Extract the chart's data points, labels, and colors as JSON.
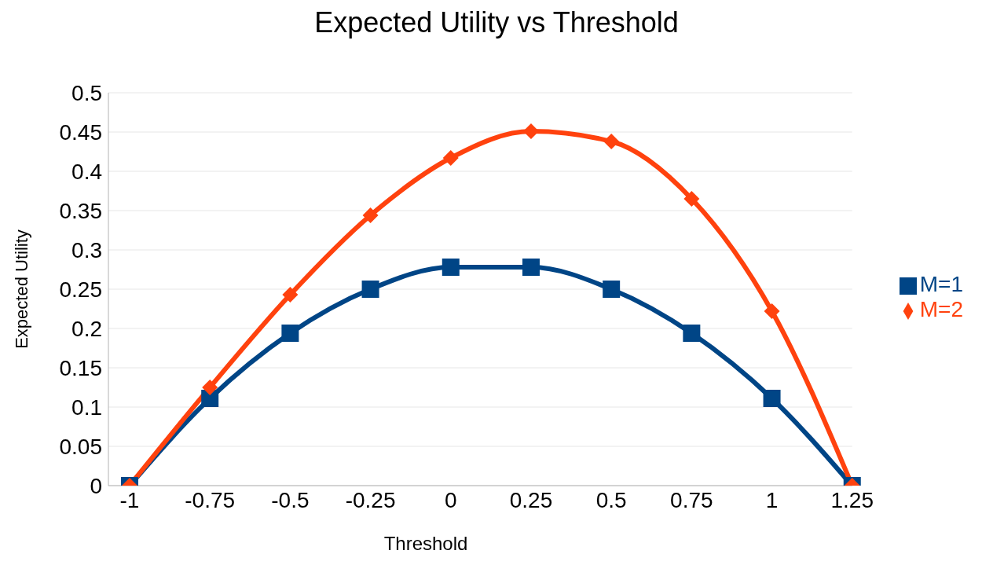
{
  "chart_data": {
    "type": "line",
    "title": "Expected Utility vs Threshold",
    "xlabel": "Threshold",
    "ylabel": "Expected Utility",
    "categories": [
      "-1",
      "-0.75",
      "-0.5",
      "-0.25",
      "0",
      "0.25",
      "0.5",
      "0.75",
      "1",
      "1.25"
    ],
    "series": [
      {
        "name": "M=1",
        "color": "#004586",
        "marker": "square",
        "values": [
          0,
          0.111,
          0.194,
          0.25,
          0.278,
          0.278,
          0.25,
          0.194,
          0.111,
          0
        ]
      },
      {
        "name": "M=2",
        "color": "#ff420e",
        "marker": "diamond",
        "values": [
          0,
          0.125,
          0.243,
          0.344,
          0.417,
          0.451,
          0.438,
          0.365,
          0.222,
          0
        ]
      }
    ],
    "ylim": [
      0,
      0.5
    ],
    "yticks": [
      0,
      0.05,
      0.1,
      0.15,
      0.2,
      0.25,
      0.3,
      0.35,
      0.4,
      0.45,
      0.5
    ],
    "grid": "y",
    "legend": "right"
  }
}
